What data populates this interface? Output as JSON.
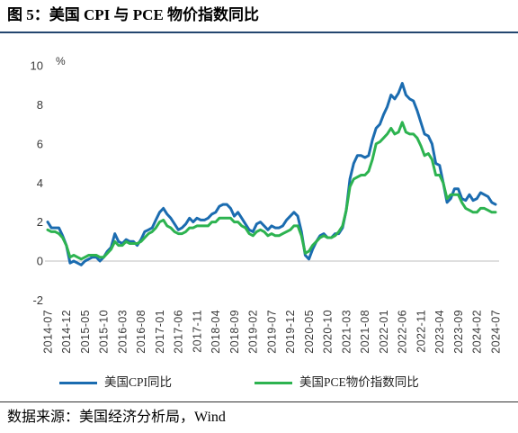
{
  "chart_data": {
    "type": "line",
    "title": "图 5：美国 CPI 与 PCE 物价指数同比",
    "ylabel": "%",
    "ylim": [
      -2,
      10
    ],
    "yticks": [
      -2,
      0,
      2,
      4,
      6,
      8,
      10
    ],
    "grid": false,
    "legend_position": "bottom",
    "x": [
      "2014-07",
      "2014-08",
      "2014-09",
      "2014-10",
      "2014-11",
      "2014-12",
      "2015-01",
      "2015-02",
      "2015-03",
      "2015-04",
      "2015-05",
      "2015-06",
      "2015-07",
      "2015-08",
      "2015-09",
      "2015-10",
      "2015-11",
      "2015-12",
      "2016-01",
      "2016-02",
      "2016-03",
      "2016-04",
      "2016-05",
      "2016-06",
      "2016-07",
      "2016-08",
      "2016-09",
      "2016-10",
      "2016-11",
      "2016-12",
      "2017-01",
      "2017-02",
      "2017-03",
      "2017-04",
      "2017-05",
      "2017-06",
      "2017-07",
      "2017-08",
      "2017-09",
      "2017-10",
      "2017-11",
      "2017-12",
      "2018-01",
      "2018-02",
      "2018-03",
      "2018-04",
      "2018-05",
      "2018-06",
      "2018-07",
      "2018-08",
      "2018-09",
      "2018-10",
      "2018-11",
      "2018-12",
      "2019-01",
      "2019-02",
      "2019-03",
      "2019-04",
      "2019-05",
      "2019-06",
      "2019-07",
      "2019-08",
      "2019-09",
      "2019-10",
      "2019-11",
      "2019-12",
      "2020-01",
      "2020-02",
      "2020-03",
      "2020-04",
      "2020-05",
      "2020-06",
      "2020-07",
      "2020-08",
      "2020-09",
      "2020-10",
      "2020-11",
      "2020-12",
      "2021-01",
      "2021-02",
      "2021-03",
      "2021-04",
      "2021-05",
      "2021-06",
      "2021-07",
      "2021-08",
      "2021-09",
      "2021-10",
      "2021-11",
      "2021-12",
      "2022-01",
      "2022-02",
      "2022-03",
      "2022-04",
      "2022-05",
      "2022-06",
      "2022-07",
      "2022-08",
      "2022-09",
      "2022-10",
      "2022-11",
      "2022-12",
      "2023-01",
      "2023-02",
      "2023-03",
      "2023-04",
      "2023-05",
      "2023-06",
      "2023-07",
      "2023-08",
      "2023-09",
      "2023-10",
      "2023-11",
      "2023-12",
      "2024-01",
      "2024-02",
      "2024-03",
      "2024-04",
      "2024-05",
      "2024-06",
      "2024-07"
    ],
    "xticks": [
      "2014-07",
      "2014-12",
      "2015-05",
      "2015-10",
      "2016-03",
      "2016-08",
      "2017-01",
      "2017-06",
      "2017-11",
      "2018-04",
      "2018-09",
      "2019-02",
      "2019-07",
      "2019-12",
      "2020-05",
      "2020-10",
      "2021-03",
      "2021-08",
      "2022-01",
      "2022-06",
      "2022-11",
      "2023-04",
      "2023-09",
      "2024-02",
      "2024-07"
    ],
    "series": [
      {
        "name": "美国CPI同比",
        "color": "#1b6cb0",
        "values": [
          2.0,
          1.7,
          1.7,
          1.7,
          1.3,
          0.8,
          -0.1,
          0.0,
          -0.1,
          -0.2,
          0.0,
          0.1,
          0.2,
          0.2,
          0.0,
          0.2,
          0.5,
          0.7,
          1.4,
          1.0,
          0.9,
          1.1,
          1.0,
          1.0,
          0.8,
          1.1,
          1.5,
          1.6,
          1.7,
          2.1,
          2.5,
          2.7,
          2.4,
          2.2,
          1.9,
          1.6,
          1.7,
          1.9,
          2.2,
          2.0,
          2.2,
          2.1,
          2.1,
          2.2,
          2.4,
          2.5,
          2.8,
          2.9,
          2.9,
          2.7,
          2.3,
          2.5,
          2.2,
          1.9,
          1.6,
          1.5,
          1.9,
          2.0,
          1.8,
          1.6,
          1.8,
          1.7,
          1.7,
          1.8,
          2.1,
          2.3,
          2.5,
          2.3,
          1.5,
          0.3,
          0.1,
          0.6,
          1.0,
          1.3,
          1.4,
          1.2,
          1.2,
          1.4,
          1.4,
          1.7,
          2.6,
          4.2,
          5.0,
          5.4,
          5.4,
          5.3,
          5.4,
          6.2,
          6.8,
          7.0,
          7.5,
          7.9,
          8.5,
          8.3,
          8.6,
          9.1,
          8.5,
          8.3,
          8.2,
          7.7,
          7.1,
          6.5,
          6.4,
          6.0,
          5.0,
          4.9,
          4.0,
          3.0,
          3.2,
          3.7,
          3.7,
          3.2,
          3.1,
          3.4,
          3.1,
          3.2,
          3.5,
          3.4,
          3.3,
          3.0,
          2.9
        ]
      },
      {
        "name": "美国PCE物价指数同比",
        "color": "#2db350",
        "values": [
          1.6,
          1.5,
          1.5,
          1.4,
          1.2,
          0.8,
          0.2,
          0.3,
          0.2,
          0.1,
          0.2,
          0.3,
          0.3,
          0.3,
          0.2,
          0.2,
          0.4,
          0.6,
          1.0,
          0.8,
          0.8,
          1.0,
          0.9,
          0.9,
          0.9,
          1.0,
          1.2,
          1.4,
          1.5,
          1.7,
          2.0,
          2.1,
          1.8,
          1.7,
          1.5,
          1.4,
          1.4,
          1.5,
          1.7,
          1.7,
          1.8,
          1.8,
          1.8,
          1.8,
          2.0,
          2.0,
          2.2,
          2.2,
          2.2,
          2.2,
          2.0,
          2.0,
          1.8,
          1.7,
          1.4,
          1.3,
          1.5,
          1.6,
          1.5,
          1.3,
          1.4,
          1.3,
          1.3,
          1.4,
          1.5,
          1.6,
          1.8,
          1.8,
          1.3,
          0.4,
          0.5,
          0.8,
          1.0,
          1.2,
          1.3,
          1.2,
          1.2,
          1.3,
          1.5,
          1.8,
          2.6,
          3.8,
          4.2,
          4.3,
          4.4,
          4.4,
          4.6,
          5.2,
          6.0,
          6.1,
          6.3,
          6.5,
          6.8,
          6.5,
          6.6,
          7.1,
          6.6,
          6.5,
          6.5,
          6.3,
          5.9,
          5.4,
          5.5,
          5.2,
          4.4,
          4.4,
          4.0,
          3.2,
          3.4,
          3.4,
          3.4,
          3.0,
          2.7,
          2.6,
          2.5,
          2.5,
          2.7,
          2.7,
          2.6,
          2.5,
          2.5
        ]
      }
    ]
  },
  "source_note": "数据来源：美国经济分析局，Wind"
}
